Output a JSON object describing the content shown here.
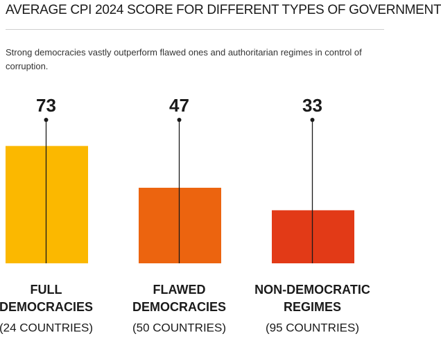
{
  "chart_data": {
    "type": "bar",
    "title": "AVERAGE CPI 2024 SCORE FOR DIFFERENT TYPES OF GOVERNMENT",
    "subtitle": "Strong democracies vastly outperform flawed ones and authoritarian regimes in control of corruption.",
    "categories": [
      [
        "FULL",
        "DEMOCRACIES"
      ],
      [
        "FLAWED",
        "DEMOCRACIES"
      ],
      [
        "NON-DEMOCRATIC",
        "REGIMES"
      ]
    ],
    "category_notes": [
      "(24 COUNTRIES)",
      "(50 COUNTRIES)",
      "(95 COUNTRIES)"
    ],
    "values": [
      73,
      47,
      33
    ],
    "colors": [
      "#fbb800",
      "#ec640f",
      "#e23a17"
    ]
  }
}
